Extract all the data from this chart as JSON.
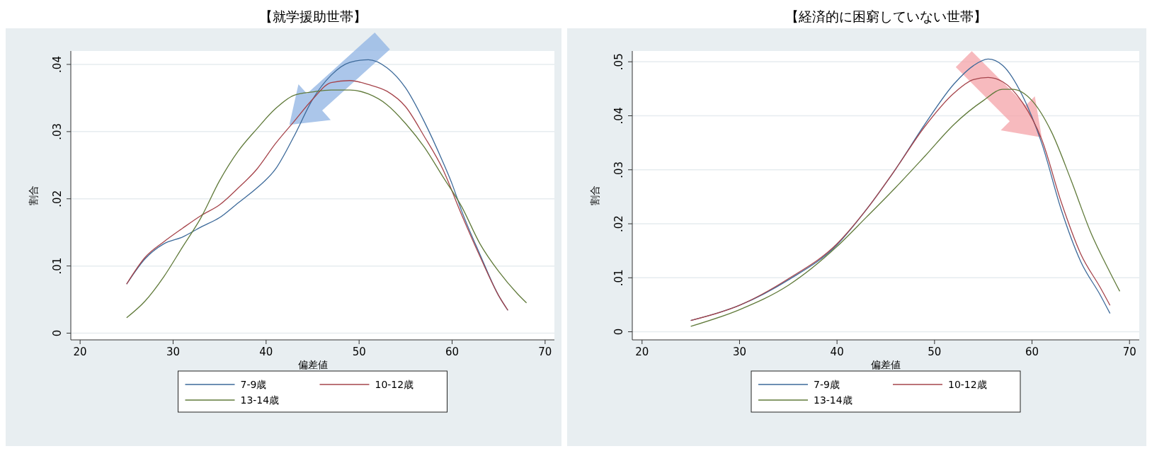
{
  "chart_data": [
    {
      "type": "line",
      "title": "【就学援助世帯】",
      "xlabel": "偏差値",
      "ylabel": "割合",
      "xlim": [
        19,
        71
      ],
      "xticks": [
        20,
        30,
        40,
        50,
        60,
        70
      ],
      "ylim": [
        -0.001,
        0.042
      ],
      "yticks": [
        {
          "value": 0,
          "label": "0"
        },
        {
          "value": 0.01,
          "label": ".01"
        },
        {
          "value": 0.02,
          "label": ".02"
        },
        {
          "value": 0.03,
          "label": ".03"
        },
        {
          "value": 0.04,
          "label": ".04"
        }
      ],
      "grid": "y",
      "legend": "bottom",
      "line_style": "solid",
      "marker": "none",
      "series": [
        {
          "name": "7-9歳",
          "color": "#3d6a9a",
          "x": [
            25,
            27,
            29,
            31,
            33,
            35,
            37,
            39,
            41,
            43,
            45,
            47,
            49,
            51,
            53,
            55,
            57,
            59,
            60,
            61,
            63,
            65,
            66
          ],
          "values": [
            0.0073,
            0.0111,
            0.0133,
            0.0143,
            0.0158,
            0.0172,
            0.0194,
            0.0216,
            0.0244,
            0.0293,
            0.0348,
            0.0384,
            0.0403,
            0.0407,
            0.0395,
            0.0365,
            0.0315,
            0.0255,
            0.0222,
            0.0183,
            0.0117,
            0.0056,
            0.0034
          ]
        },
        {
          "name": "10-12歳",
          "color": "#a6444b",
          "x": [
            25,
            27,
            29,
            31,
            33,
            35,
            37,
            39,
            41,
            43,
            45,
            47,
            49,
            51,
            53,
            55,
            57,
            59,
            61,
            63,
            65,
            66
          ],
          "values": [
            0.0073,
            0.0113,
            0.0136,
            0.0156,
            0.0175,
            0.0191,
            0.0216,
            0.0244,
            0.0282,
            0.0315,
            0.0348,
            0.0373,
            0.0376,
            0.037,
            0.036,
            0.0337,
            0.0293,
            0.0244,
            0.0177,
            0.0114,
            0.0056,
            0.0034
          ]
        },
        {
          "name": "13-14歳",
          "color": "#607a3a",
          "x": [
            25,
            27,
            29,
            31,
            33,
            35,
            37,
            39,
            41,
            43,
            45,
            47,
            49,
            51,
            53,
            55,
            57,
            59,
            61,
            63,
            65,
            67,
            68
          ],
          "values": [
            0.0023,
            0.0048,
            0.0084,
            0.0128,
            0.0172,
            0.0227,
            0.0271,
            0.0304,
            0.0334,
            0.0354,
            0.0359,
            0.0362,
            0.0362,
            0.0356,
            0.034,
            0.0312,
            0.0277,
            0.0233,
            0.0189,
            0.0133,
            0.0092,
            0.0059,
            0.0045
          ]
        }
      ]
    },
    {
      "type": "line",
      "title": "【経済的に困窮していない世帯】",
      "xlabel": "偏差値",
      "ylabel": "割合",
      "xlim": [
        19,
        71
      ],
      "xticks": [
        20,
        30,
        40,
        50,
        60,
        70
      ],
      "ylim": [
        -0.0015,
        0.052
      ],
      "yticks": [
        {
          "value": 0,
          "label": "0"
        },
        {
          "value": 0.01,
          "label": ".01"
        },
        {
          "value": 0.02,
          "label": ".02"
        },
        {
          "value": 0.03,
          "label": ".03"
        },
        {
          "value": 0.04,
          "label": ".04"
        },
        {
          "value": 0.05,
          "label": ".05"
        }
      ],
      "grid": "y",
      "legend": "bottom",
      "line_style": "solid",
      "marker": "none",
      "series": [
        {
          "name": "7-9歳",
          "color": "#3d6a9a",
          "x": [
            25,
            30,
            35,
            40,
            43,
            46,
            49,
            52,
            54,
            55.5,
            57,
            59,
            61,
            63,
            65,
            67,
            68
          ],
          "values": [
            0.0021,
            0.0049,
            0.0096,
            0.0161,
            0.0226,
            0.0301,
            0.0384,
            0.0459,
            0.0493,
            0.0505,
            0.0493,
            0.0438,
            0.0349,
            0.0226,
            0.013,
            0.0068,
            0.0034
          ]
        },
        {
          "name": "10-12歳",
          "color": "#a6444b",
          "x": [
            25,
            30,
            35,
            40,
            43,
            46,
            49,
            52,
            54,
            55.5,
            57,
            59,
            61,
            63,
            65,
            67,
            68
          ],
          "values": [
            0.0021,
            0.0049,
            0.0098,
            0.0163,
            0.0226,
            0.0301,
            0.038,
            0.0442,
            0.0467,
            0.0471,
            0.0463,
            0.0425,
            0.0356,
            0.024,
            0.0144,
            0.0082,
            0.0049
          ]
        },
        {
          "name": "13-14歳",
          "color": "#607a3a",
          "x": [
            25,
            30,
            35,
            40,
            43,
            46,
            49,
            52,
            55,
            57,
            58,
            60,
            62,
            64,
            66,
            68,
            69
          ],
          "values": [
            0.001,
            0.0041,
            0.0086,
            0.0158,
            0.0212,
            0.0267,
            0.0325,
            0.0384,
            0.0428,
            0.0449,
            0.0449,
            0.0428,
            0.037,
            0.0281,
            0.0185,
            0.011,
            0.0075
          ]
        }
      ]
    }
  ]
}
